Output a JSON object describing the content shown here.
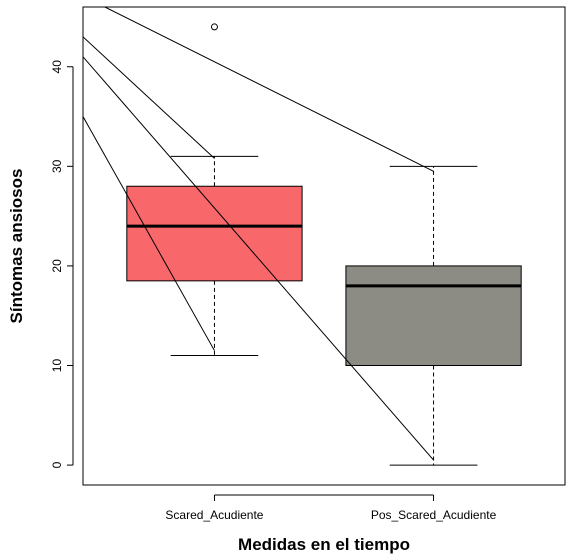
{
  "chart_data": {
    "type": "box",
    "title": "",
    "xlabel": "Medidas en el tiempo",
    "ylabel": "Síntomas ansiosos",
    "ylim": [
      -2,
      46
    ],
    "y_ticks": [
      0,
      10,
      20,
      30,
      40
    ],
    "grid": false,
    "categories": [
      "Scared_Acudiente",
      "Pos_Scared_Acudiente"
    ],
    "boxes": [
      {
        "category": "Scared_Acudiente",
        "whisker_low": 11,
        "q1": 18.5,
        "median": 24,
        "q3": 28,
        "whisker_high": 31,
        "outliers": [
          44
        ],
        "color": "#f8686b"
      },
      {
        "category": "Pos_Scared_Acudiente",
        "whisker_low": 0,
        "q1": 10,
        "median": 18,
        "q3": 20,
        "whisker_high": 30,
        "outliers": [],
        "color": "#8c8c84"
      }
    ],
    "lines": [
      {
        "x": [
          0.4,
          1.0
        ],
        "y": [
          35,
          11.5
        ]
      },
      {
        "x": [
          0.4,
          1.0
        ],
        "y": [
          43,
          30.8
        ]
      },
      {
        "x": [
          0.4,
          2.0
        ],
        "y": [
          41,
          0.5
        ]
      },
      {
        "x": [
          0.5,
          2.0
        ],
        "y": [
          46,
          29.5
        ]
      }
    ]
  }
}
